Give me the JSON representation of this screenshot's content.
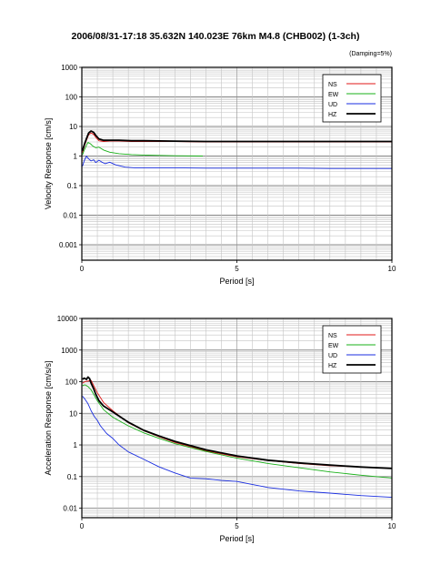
{
  "page": {
    "title": "2006/08/31-17:18 35.632N 140.023E 76km M4.8 (CHB002) (1-3ch)",
    "note": "(Damping=5%)"
  },
  "colors": {
    "NS": "#e01818",
    "EW": "#18b018",
    "UD": "#1a2ee0",
    "HZ": "#000000"
  },
  "chart_data": [
    {
      "type": "line",
      "ylabel": "Velocity Response [cm/s]",
      "xlabel": "Period [s]",
      "xlim": [
        0,
        10
      ],
      "ylim": [
        0.0003,
        1000
      ],
      "yscale": "log",
      "xticks": [
        0,
        5,
        10
      ],
      "yticks": [
        {
          "v": 1000,
          "label": "1000"
        },
        {
          "v": 100,
          "label": "100"
        },
        {
          "v": 10,
          "label": "10"
        },
        {
          "v": 1,
          "label": "1"
        },
        {
          "v": 0.1,
          "label": "0.1"
        },
        {
          "v": 0.01,
          "label": "0.01"
        },
        {
          "v": 0.001,
          "label": "0.001"
        }
      ],
      "grid": true,
      "legend": "top-right",
      "series": [
        {
          "name": "NS",
          "x": [
            0.02,
            0.08,
            0.15,
            0.22,
            0.3,
            0.38,
            0.45,
            0.55,
            0.7,
            0.9,
            1.2,
            1.6,
            2,
            3,
            4,
            5,
            6,
            7,
            8,
            9,
            10
          ],
          "y": [
            1.3,
            2.1,
            3.4,
            5.2,
            6.0,
            5.4,
            4.3,
            3.3,
            3.1,
            3.2,
            3.2,
            3.1,
            3.1,
            3.1,
            3.0,
            3.0,
            3.0,
            3.0,
            3.0,
            3.0,
            3.0
          ]
        },
        {
          "name": "EW",
          "x": [
            0.02,
            0.08,
            0.15,
            0.2,
            0.28,
            0.35,
            0.45,
            0.55,
            0.7,
            0.9,
            1.2,
            1.6,
            2,
            2.5,
            3,
            3.9
          ],
          "y": [
            1.1,
            1.6,
            2.3,
            2.9,
            2.6,
            2.2,
            1.9,
            2.0,
            1.6,
            1.35,
            1.2,
            1.12,
            1.08,
            1.05,
            1.02,
            1.0
          ]
        },
        {
          "name": "UD",
          "x": [
            0.02,
            0.08,
            0.15,
            0.22,
            0.3,
            0.38,
            0.45,
            0.55,
            0.65,
            0.75,
            0.9,
            1.1,
            1.4,
            1.7,
            2,
            3,
            4,
            5,
            6,
            7,
            8,
            9,
            10
          ],
          "y": [
            0.45,
            0.7,
            1.0,
            0.8,
            0.68,
            0.75,
            0.6,
            0.72,
            0.62,
            0.55,
            0.62,
            0.5,
            0.42,
            0.4,
            0.4,
            0.4,
            0.39,
            0.39,
            0.39,
            0.39,
            0.38,
            0.38,
            0.38
          ]
        },
        {
          "name": "HZ",
          "x": [
            0.02,
            0.08,
            0.15,
            0.22,
            0.3,
            0.38,
            0.45,
            0.55,
            0.7,
            0.9,
            1.2,
            1.6,
            2,
            3,
            4,
            5,
            6,
            7,
            8,
            9,
            10
          ],
          "y": [
            1.5,
            2.4,
            3.9,
            6.0,
            7.0,
            6.3,
            5.0,
            3.8,
            3.4,
            3.4,
            3.4,
            3.3,
            3.3,
            3.2,
            3.1,
            3.1,
            3.1,
            3.1,
            3.1,
            3.1,
            3.1
          ]
        }
      ]
    },
    {
      "type": "line",
      "ylabel": "Acceleration Response [cm/s/s]",
      "xlabel": "Period [s]",
      "xlim": [
        0,
        10
      ],
      "ylim": [
        0.005,
        10000
      ],
      "yscale": "log",
      "xticks": [
        0,
        5,
        10
      ],
      "yticks": [
        {
          "v": 10000,
          "label": "10000"
        },
        {
          "v": 1000,
          "label": "1000"
        },
        {
          "v": 100,
          "label": "100"
        },
        {
          "v": 10,
          "label": "10"
        },
        {
          "v": 1,
          "label": "1"
        },
        {
          "v": 0.1,
          "label": "0.1"
        },
        {
          "v": 0.01,
          "label": "0.01"
        }
      ],
      "grid": true,
      "legend": "top-right",
      "series": [
        {
          "name": "NS",
          "x": [
            0.02,
            0.1,
            0.2,
            0.3,
            0.4,
            0.5,
            0.7,
            1,
            1.5,
            2,
            2.5,
            3,
            4,
            5,
            6,
            7,
            8,
            9,
            10
          ],
          "y": [
            90,
            100,
            105,
            110,
            70,
            45,
            22,
            12,
            5.0,
            2.8,
            1.8,
            1.2,
            0.65,
            0.42,
            0.32,
            0.26,
            0.22,
            0.2,
            0.18
          ]
        },
        {
          "name": "EW",
          "x": [
            0.02,
            0.1,
            0.2,
            0.3,
            0.5,
            0.7,
            1,
            1.5,
            2,
            2.5,
            3,
            4,
            5,
            6,
            7,
            8,
            9,
            10
          ],
          "y": [
            75,
            80,
            70,
            55,
            25,
            13,
            7.5,
            4.0,
            2.4,
            1.6,
            1.1,
            0.62,
            0.38,
            0.26,
            0.19,
            0.14,
            0.11,
            0.09
          ]
        },
        {
          "name": "UD",
          "x": [
            0.02,
            0.1,
            0.2,
            0.3,
            0.4,
            0.5,
            0.6,
            0.8,
            1,
            1.2,
            1.5,
            2,
            2.5,
            3,
            3.5,
            4,
            4.5,
            5,
            6,
            7,
            8,
            9,
            10
          ],
          "y": [
            35,
            28,
            20,
            12,
            8,
            6,
            4,
            2.3,
            1.6,
            1.0,
            0.6,
            0.35,
            0.2,
            0.13,
            0.09,
            0.085,
            0.075,
            0.07,
            0.045,
            0.035,
            0.03,
            0.025,
            0.022
          ]
        },
        {
          "name": "HZ",
          "x": [
            0.02,
            0.08,
            0.15,
            0.2,
            0.25,
            0.3,
            0.38,
            0.45,
            0.55,
            0.7,
            1,
            1.5,
            2,
            2.5,
            3,
            4,
            5,
            6,
            7,
            8,
            9,
            10
          ],
          "y": [
            120,
            130,
            118,
            140,
            125,
            90,
            60,
            40,
            25,
            17,
            11,
            5.2,
            2.9,
            1.9,
            1.3,
            0.7,
            0.45,
            0.33,
            0.27,
            0.23,
            0.2,
            0.18
          ]
        }
      ]
    }
  ]
}
